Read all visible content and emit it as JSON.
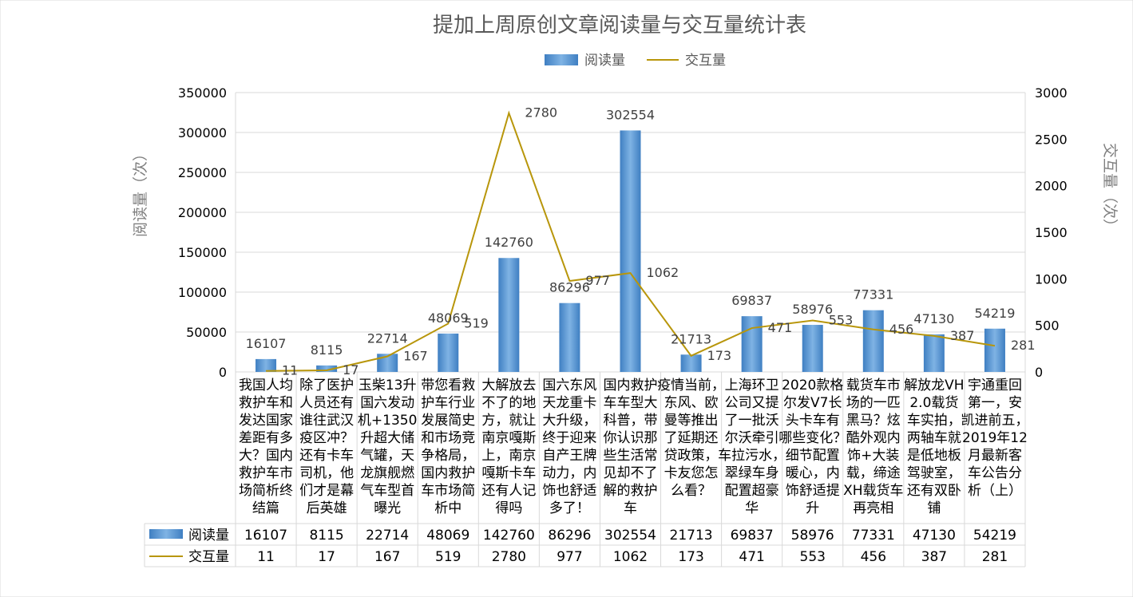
{
  "chart_data": {
    "type": "bar",
    "title": "提加上周原创文章阅读量与交互量统计表",
    "legend": [
      "阅读量",
      "交互量"
    ],
    "ylabel_left": "阅读量（次）",
    "ylabel_right": "交互量（次）",
    "y_left_range": [
      0,
      350000
    ],
    "y_right_range": [
      0,
      3000
    ],
    "y_left_ticks": [
      "0",
      "50000",
      "100000",
      "150000",
      "200000",
      "250000",
      "300000",
      "350000"
    ],
    "y_right_ticks": [
      "0",
      "500",
      "1000",
      "1500",
      "2000",
      "2500",
      "3000"
    ],
    "categories": [
      "我国人均救护车和发达国家差距有多大？国内救护车市场简析终结篇",
      "除了医护人员还有谁往武汉疫区冲？还有卡车司机，他们才是幕后英雄",
      "玉柴13升国六发动机+1350升超大储气罐，天龙旗舰燃气车型首曝光",
      "带您看救护车行业发展简史和市场竞争格局，国内救护车市场简析中",
      "大解放去不了的地方，就让南京嘎斯上，南京嘎斯卡车还有人记得吗",
      "国六东风天龙重卡大升级，终于迎来自产王牌动力，内饰也舒适多了！",
      "国内救护车车型大科普，带你认识那些生活常见却不了解的救护车",
      "疫情当前，东风、欧曼等推出了延期还贷政策，卡友您怎么看？",
      "上海环卫公司又提了一批沃尔沃牵引车拉污水，翠绿车身配置超豪华",
      "2020款格尔发V7长头卡车有哪些变化？细节配置暖心，内饰舒适提升",
      "载货车市场的一匹黑马？炫酷外观内饰+大装载，缔途XH载货车再亮相",
      "解放龙VH 2.0载货车实拍，两轴车就是低地板驾驶室，还有双卧铺",
      "宇通重回第一，安凯进前五，2019年12月最新客车公告分析（上）"
    ],
    "category_lines": [
      [
        "我国人均",
        "救护车和",
        "发达国家",
        "差距有多",
        "大？国内",
        "救护车市",
        "场简析终",
        "结篇"
      ],
      [
        "除了医护",
        "人员还有",
        "谁往武汉",
        "疫区冲？",
        "还有卡车",
        "司机，他",
        "们才是幕",
        "后英雄"
      ],
      [
        "玉柴13升",
        "国六发动",
        "机+1350",
        "升超大储",
        "气罐，天",
        "龙旗舰燃",
        "气车型首",
        "曝光"
      ],
      [
        "带您看救",
        "护车行业",
        "发展简史",
        "和市场竞",
        "争格局，",
        "国内救护",
        "车市场简",
        "析中"
      ],
      [
        "大解放去",
        "不了的地",
        "方，就让",
        "南京嘎斯",
        "上，南京",
        "嘎斯卡车",
        "还有人记",
        "得吗"
      ],
      [
        "国六东风",
        "天龙重卡",
        "大升级，",
        "终于迎来",
        "自产王牌",
        "动力，内",
        "饰也舒适",
        "多了！"
      ],
      [
        "国内救护",
        "车车型大",
        "科普，带",
        "你认识那",
        "些生活常",
        "见却不了",
        "解的救护",
        "车"
      ],
      [
        "疫情当前，",
        "东风、欧",
        "曼等推出",
        "了延期还",
        "贷政策，",
        "卡友您怎",
        "么看？"
      ],
      [
        "上海环卫",
        "公司又提",
        "了一批沃",
        "尔沃牵引",
        "车拉污水，",
        "翠绿车身",
        "配置超豪",
        "华"
      ],
      [
        "2020款格",
        "尔发V7长",
        "头卡车有",
        "哪些变化？",
        "细节配置",
        "暖心，内",
        "饰舒适提",
        "升"
      ],
      [
        "载货车市",
        "场的一匹",
        "黑马？炫",
        "酷外观内",
        "饰+大装",
        "载，缔途",
        "XH载货车",
        "再亮相"
      ],
      [
        "解放龙VH",
        "2.0载货",
        "车实拍，",
        "两轴车就",
        "是低地板",
        "驾驶室，",
        "还有双卧",
        "铺"
      ],
      [
        "宇通重回",
        "第一，安",
        "凯进前五，",
        "2019年12",
        "月最新客",
        "车公告分",
        "析（上）"
      ]
    ],
    "series": [
      {
        "name": "阅读量",
        "type": "bar",
        "axis": "left",
        "values": [
          16107,
          8115,
          22714,
          48069,
          142760,
          86296,
          302554,
          21713,
          69837,
          58976,
          77331,
          47130,
          54219
        ]
      },
      {
        "name": "交互量",
        "type": "line",
        "axis": "right",
        "values": [
          11,
          17,
          167,
          519,
          2780,
          977,
          1062,
          173,
          471,
          553,
          456,
          387,
          281
        ]
      }
    ],
    "colors": {
      "bar": "#5b9bd5",
      "bar_dark": "#2e75b6",
      "line": "#b8960b",
      "grid": "#d9d9d9",
      "text": "#404040",
      "axis_label": "#595959"
    },
    "grid": true,
    "legend_position": "top-center",
    "data_table": true
  }
}
